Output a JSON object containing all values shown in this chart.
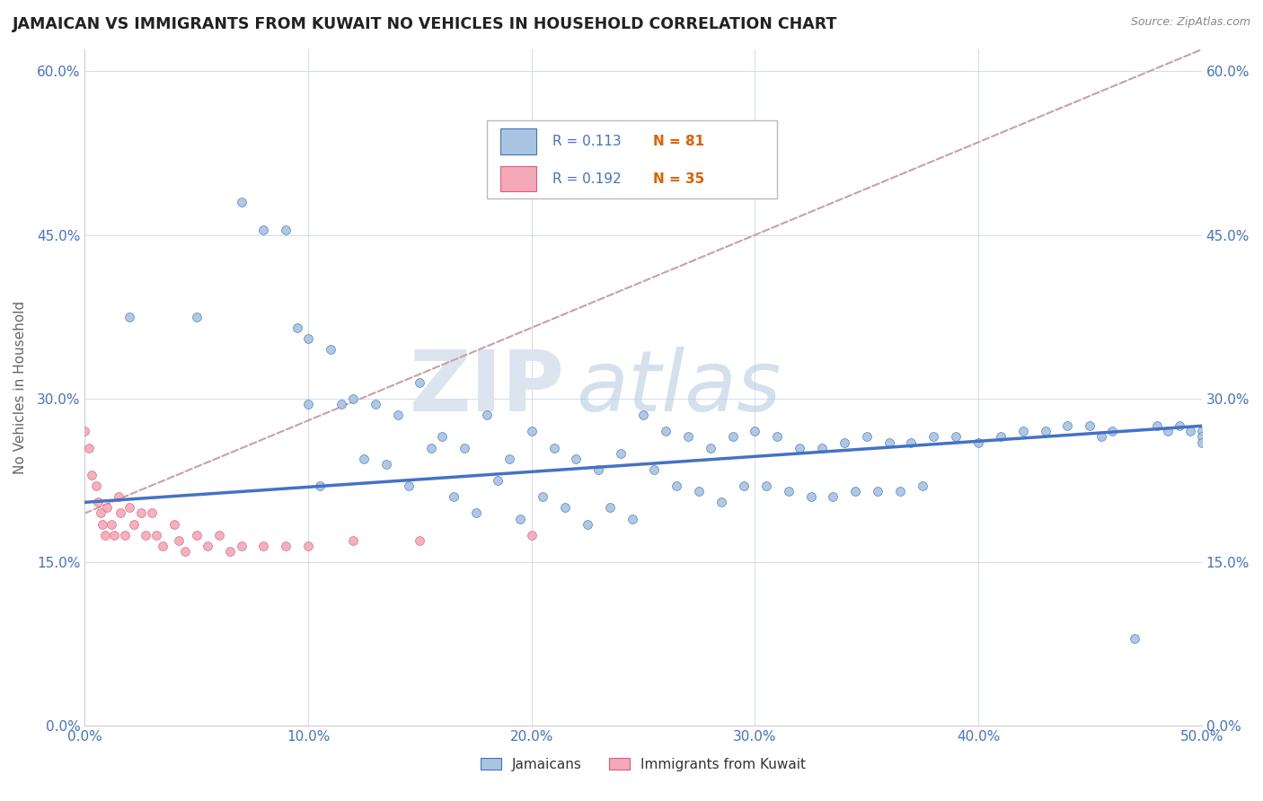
{
  "title": "JAMAICAN VS IMMIGRANTS FROM KUWAIT NO VEHICLES IN HOUSEHOLD CORRELATION CHART",
  "source": "Source: ZipAtlas.com",
  "ylabel": "No Vehicles in Household",
  "xlim": [
    0.0,
    0.5
  ],
  "ylim": [
    0.0,
    0.62
  ],
  "xtick_vals": [
    0.0,
    0.1,
    0.2,
    0.3,
    0.4,
    0.5
  ],
  "ytick_vals": [
    0.0,
    0.15,
    0.3,
    0.45,
    0.6
  ],
  "R_jamaican": 0.113,
  "N_jamaican": 81,
  "R_kuwait": 0.192,
  "N_kuwait": 35,
  "color_jamaican_fill": "#a8c4e0",
  "color_jamaican_edge": "#4472c4",
  "color_kuwait_fill": "#f4a8b8",
  "color_kuwait_edge": "#d9607a",
  "color_line_jamaican": "#4472c4",
  "color_line_kuwait": "#d9a0a8",
  "jamaican_x": [
    0.02,
    0.05,
    0.07,
    0.08,
    0.09,
    0.095,
    0.1,
    0.1,
    0.105,
    0.11,
    0.115,
    0.12,
    0.125,
    0.13,
    0.135,
    0.14,
    0.145,
    0.15,
    0.155,
    0.16,
    0.165,
    0.17,
    0.175,
    0.18,
    0.185,
    0.19,
    0.195,
    0.2,
    0.205,
    0.21,
    0.215,
    0.22,
    0.225,
    0.23,
    0.235,
    0.24,
    0.245,
    0.25,
    0.255,
    0.26,
    0.265,
    0.27,
    0.275,
    0.28,
    0.285,
    0.29,
    0.295,
    0.3,
    0.305,
    0.31,
    0.315,
    0.32,
    0.325,
    0.33,
    0.335,
    0.34,
    0.345,
    0.35,
    0.355,
    0.36,
    0.365,
    0.37,
    0.375,
    0.38,
    0.39,
    0.4,
    0.41,
    0.42,
    0.43,
    0.44,
    0.45,
    0.455,
    0.46,
    0.47,
    0.48,
    0.485,
    0.49,
    0.495,
    0.5,
    0.5,
    0.5
  ],
  "jamaican_y": [
    0.375,
    0.375,
    0.48,
    0.455,
    0.455,
    0.365,
    0.355,
    0.295,
    0.22,
    0.345,
    0.295,
    0.3,
    0.245,
    0.295,
    0.24,
    0.285,
    0.22,
    0.315,
    0.255,
    0.265,
    0.21,
    0.255,
    0.195,
    0.285,
    0.225,
    0.245,
    0.19,
    0.27,
    0.21,
    0.255,
    0.2,
    0.245,
    0.185,
    0.235,
    0.2,
    0.25,
    0.19,
    0.285,
    0.235,
    0.27,
    0.22,
    0.265,
    0.215,
    0.255,
    0.205,
    0.265,
    0.22,
    0.27,
    0.22,
    0.265,
    0.215,
    0.255,
    0.21,
    0.255,
    0.21,
    0.26,
    0.215,
    0.265,
    0.215,
    0.26,
    0.215,
    0.26,
    0.22,
    0.265,
    0.265,
    0.26,
    0.265,
    0.27,
    0.27,
    0.275,
    0.275,
    0.265,
    0.27,
    0.08,
    0.275,
    0.27,
    0.275,
    0.27,
    0.27,
    0.265,
    0.26
  ],
  "kuwait_x": [
    0.0,
    0.002,
    0.003,
    0.005,
    0.006,
    0.007,
    0.008,
    0.009,
    0.01,
    0.012,
    0.013,
    0.015,
    0.016,
    0.018,
    0.02,
    0.022,
    0.025,
    0.027,
    0.03,
    0.032,
    0.035,
    0.04,
    0.042,
    0.045,
    0.05,
    0.055,
    0.06,
    0.065,
    0.07,
    0.08,
    0.09,
    0.1,
    0.12,
    0.15,
    0.2
  ],
  "kuwait_y": [
    0.27,
    0.255,
    0.23,
    0.22,
    0.205,
    0.195,
    0.185,
    0.175,
    0.2,
    0.185,
    0.175,
    0.21,
    0.195,
    0.175,
    0.2,
    0.185,
    0.195,
    0.175,
    0.195,
    0.175,
    0.165,
    0.185,
    0.17,
    0.16,
    0.175,
    0.165,
    0.175,
    0.16,
    0.165,
    0.165,
    0.165,
    0.165,
    0.17,
    0.17,
    0.175
  ],
  "jm_line_x0": 0.0,
  "jm_line_y0": 0.205,
  "jm_line_x1": 0.5,
  "jm_line_y1": 0.275,
  "kw_line_x0": 0.0,
  "kw_line_y0": 0.195,
  "kw_line_x1": 0.5,
  "kw_line_y1": 0.62
}
